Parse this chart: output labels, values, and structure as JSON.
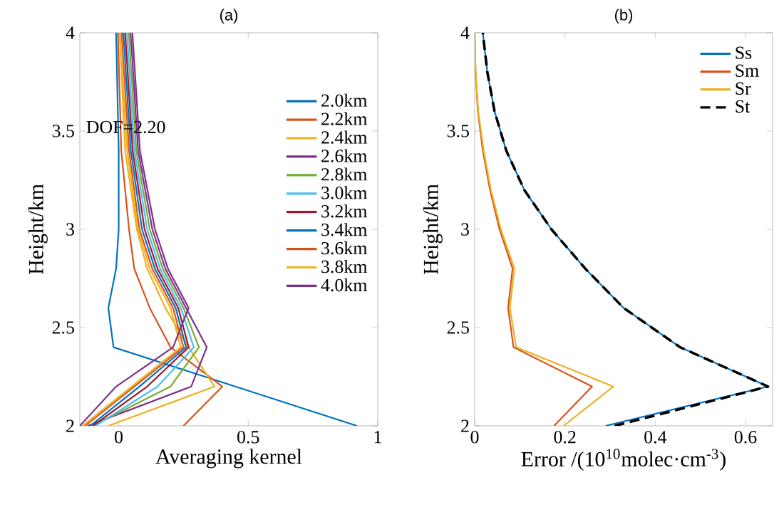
{
  "chart_data": [
    {
      "type": "line",
      "title": "(a)",
      "xlabel": "Averaging kernel",
      "ylabel": "Height/km",
      "xlim": [
        -0.15,
        1
      ],
      "xticks": [
        0,
        0.5,
        1
      ],
      "ylim": [
        2,
        4
      ],
      "yticks": [
        2,
        2.5,
        3,
        3.5,
        4
      ],
      "legend": "top right",
      "annotations": [
        "DOF=2.20"
      ],
      "series": [
        {
          "name": "2.0km",
          "color": "#0072bd",
          "x": [
            0.92,
            0.45,
            -0.02,
            -0.04,
            -0.01,
            0,
            0,
            -0.01
          ],
          "values": [
            2.0,
            2.2,
            2.4,
            2.6,
            2.8,
            3.0,
            3.4,
            4.0
          ]
        },
        {
          "name": "2.2km",
          "color": "#d95319",
          "x": [
            0.25,
            0.4,
            0.2,
            0.12,
            0.06,
            0.04,
            0.01,
            -0.003
          ],
          "values": [
            2.0,
            2.2,
            2.4,
            2.6,
            2.8,
            3.0,
            3.4,
            4.0
          ]
        },
        {
          "name": "2.4km",
          "color": "#edb120",
          "x": [
            -0.04,
            0.37,
            0.27,
            0.18,
            0.11,
            0.07,
            0.025,
            0.004
          ],
          "values": [
            2.0,
            2.2,
            2.4,
            2.6,
            2.8,
            3.0,
            3.4,
            4.0
          ]
        },
        {
          "name": "2.6km",
          "color": "#7e2f8e",
          "x": [
            -0.12,
            0.28,
            0.34,
            0.26,
            0.18,
            0.13,
            0.075,
            0.046
          ],
          "values": [
            2.0,
            2.2,
            2.4,
            2.6,
            2.8,
            3.0,
            3.4,
            4.0
          ]
        },
        {
          "name": "2.8km",
          "color": "#77ac30",
          "x": [
            -0.1,
            0.2,
            0.31,
            0.25,
            0.17,
            0.12,
            0.068,
            0.039
          ],
          "values": [
            2.0,
            2.2,
            2.4,
            2.6,
            2.8,
            3.0,
            3.4,
            4.0
          ]
        },
        {
          "name": "3.0km",
          "color": "#4dbeee",
          "x": [
            -0.09,
            0.15,
            0.29,
            0.24,
            0.16,
            0.11,
            0.061,
            0.032
          ],
          "values": [
            2.0,
            2.2,
            2.4,
            2.6,
            2.8,
            3.0,
            3.4,
            4.0
          ]
        },
        {
          "name": "3.2km",
          "color": "#a2142f",
          "x": [
            -0.1,
            0.11,
            0.27,
            0.23,
            0.15,
            0.1,
            0.054,
            0.025
          ],
          "values": [
            2.0,
            2.2,
            2.4,
            2.6,
            2.8,
            3.0,
            3.4,
            4.0
          ]
        },
        {
          "name": "3.4km",
          "color": "#0072bd",
          "x": [
            -0.11,
            0.08,
            0.26,
            0.22,
            0.14,
            0.09,
            0.047,
            0.018
          ],
          "values": [
            2.0,
            2.2,
            2.4,
            2.6,
            2.8,
            3.0,
            3.4,
            4.0
          ]
        },
        {
          "name": "3.6km",
          "color": "#d95319",
          "x": [
            -0.13,
            0.06,
            0.25,
            0.21,
            0.13,
            0.08,
            0.04,
            0.011
          ],
          "values": [
            2.0,
            2.2,
            2.4,
            2.6,
            2.8,
            3.0,
            3.4,
            4.0
          ]
        },
        {
          "name": "3.8km",
          "color": "#edb120",
          "x": [
            -0.14,
            0.05,
            0.24,
            0.2,
            0.12,
            0.075,
            0.033,
            0.004
          ],
          "values": [
            2.0,
            2.2,
            2.4,
            2.6,
            2.8,
            3.0,
            3.4,
            4.0
          ]
        },
        {
          "name": "4.0km",
          "color": "#7e2f8e",
          "x": [
            -0.15,
            -0.01,
            0.21,
            0.27,
            0.19,
            0.14,
            0.082,
            0.053
          ],
          "values": [
            2.0,
            2.2,
            2.4,
            2.6,
            2.8,
            3.0,
            3.4,
            4.0
          ]
        }
      ]
    },
    {
      "type": "line",
      "title": "(b)",
      "xlabel": "Error /(10$^{10}$molec·cm$^{-3}$)",
      "ylabel": "Height/km",
      "xlim": [
        0,
        0.66
      ],
      "xticks": [
        0,
        0.2,
        0.4,
        0.6
      ],
      "ylim": [
        2,
        4
      ],
      "yticks": [
        2,
        2.5,
        3,
        3.5,
        4
      ],
      "legend": "top right",
      "series": [
        {
          "name": "Ss",
          "color": "#0072bd",
          "x": [
            0.29,
            0.65,
            0.455,
            0.33,
            0.245,
            0.17,
            0.11,
            0.07,
            0.044,
            0.028,
            0.018
          ],
          "values": [
            2.0,
            2.2,
            2.4,
            2.6,
            2.8,
            3.0,
            3.2,
            3.4,
            3.6,
            3.8,
            4.0
          ]
        },
        {
          "name": "Sm",
          "color": "#d95319",
          "x": [
            0.176,
            0.26,
            0.086,
            0.074,
            0.084,
            0.055,
            0.034,
            0.018,
            0.007,
            0.002,
            0
          ],
          "values": [
            2.0,
            2.2,
            2.4,
            2.6,
            2.8,
            3.0,
            3.2,
            3.4,
            3.6,
            3.8,
            4.0
          ]
        },
        {
          "name": "Sr",
          "color": "#edb120",
          "x": [
            0.197,
            0.307,
            0.092,
            0.078,
            0.088,
            0.058,
            0.036,
            0.02,
            0.008,
            0.002,
            0
          ],
          "values": [
            2.0,
            2.2,
            2.4,
            2.6,
            2.8,
            3.0,
            3.2,
            3.4,
            3.6,
            3.8,
            4.0
          ]
        },
        {
          "name": "St",
          "color": "#000000",
          "line_style": "dashed",
          "x": [
            0.31,
            0.65,
            0.455,
            0.33,
            0.245,
            0.17,
            0.11,
            0.07,
            0.044,
            0.028,
            0.018
          ],
          "values": [
            2.0,
            2.2,
            2.4,
            2.6,
            2.8,
            3.0,
            3.2,
            3.4,
            3.6,
            3.8,
            4.0
          ]
        }
      ]
    }
  ]
}
